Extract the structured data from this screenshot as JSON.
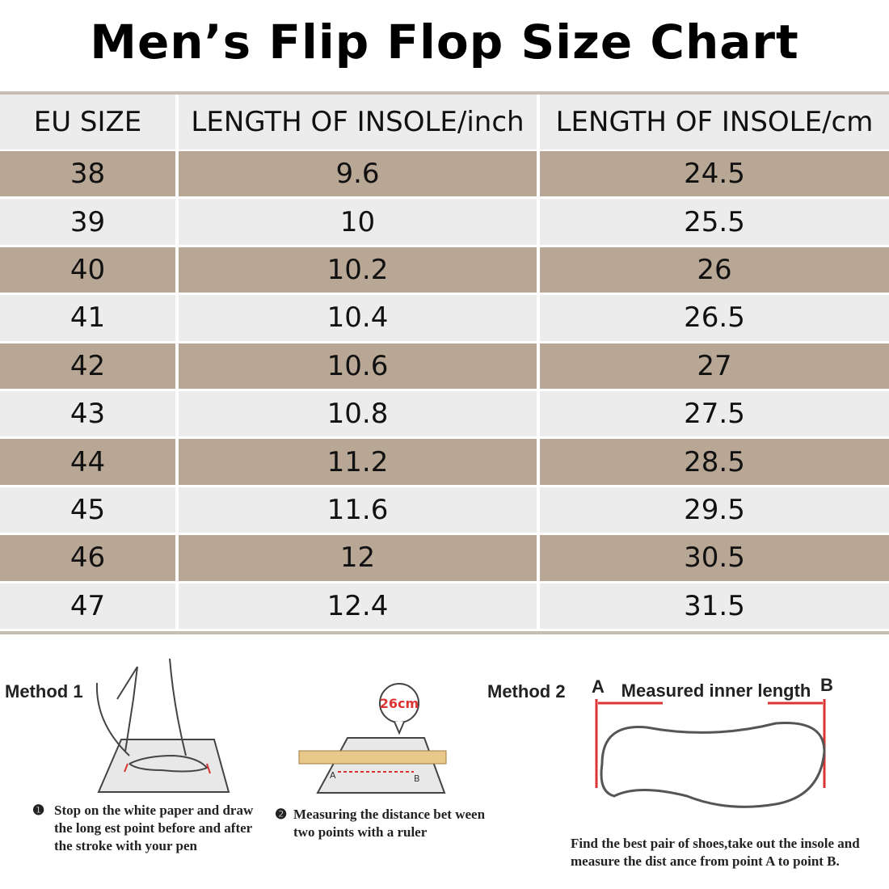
{
  "title": "Men’s Flip Flop Size Chart",
  "table": {
    "headers": [
      "EU SIZE",
      "LENGTH OF INSOLE/inch",
      "LENGTH OF INSOLE/cm"
    ],
    "rows": [
      [
        38,
        9.6,
        24.5
      ],
      [
        39,
        10,
        25.5
      ],
      [
        40,
        10.2,
        26
      ],
      [
        41,
        10.4,
        26.5
      ],
      [
        42,
        10.6,
        27
      ],
      [
        43,
        10.8,
        27.5
      ],
      [
        44,
        11.2,
        28.5
      ],
      [
        45,
        11.6,
        29.5
      ],
      [
        46,
        12,
        30.5
      ],
      [
        47,
        12.4,
        31.5
      ]
    ]
  },
  "methods": {
    "method1": {
      "label": "Method 1",
      "step1": {
        "marker": "❶",
        "lines": [
          "Stop on the white paper and draw",
          "the long est point before and after",
          "the stroke with your pen"
        ]
      },
      "step2": {
        "marker": "❷",
        "lines": [
          "Measuring the distance bet ween",
          "two points with a ruler"
        ]
      },
      "ruler_label": "26cm",
      "point_a": "A",
      "point_b": "B"
    },
    "method2": {
      "label": "Method 2",
      "point_a": "A",
      "point_b": "B",
      "span_label": "Measured inner length",
      "lines": [
        "Find the best pair of shoes,take out the insole and",
        "measure the dist ance from point A to point B."
      ]
    }
  }
}
